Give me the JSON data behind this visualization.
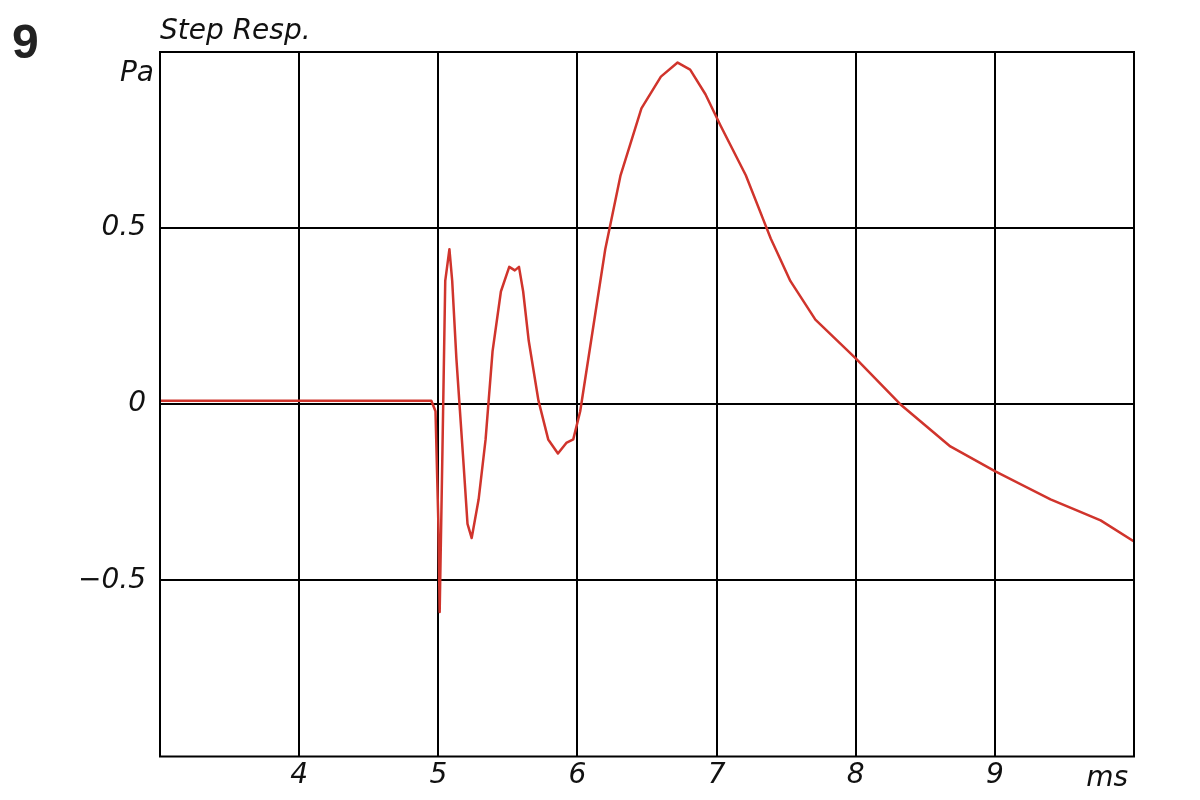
{
  "chart_data": {
    "type": "line",
    "title": "Step Resp.",
    "xlabel": "ms",
    "ylabel": "Pa",
    "annotations": [
      "9"
    ],
    "xlim": [
      3,
      10
    ],
    "xticks": [
      4,
      5,
      6,
      7,
      8,
      9
    ],
    "ylim": [
      -1,
      1
    ],
    "yticks": [
      {
        "value": -0.5,
        "label": "−0.5"
      },
      0,
      0.5
    ],
    "grid": true,
    "legend": false,
    "marker": "none",
    "line_style": "solid",
    "series": [
      {
        "color": "#d0342c",
        "x": [
          3.0,
          4.95,
          4.98,
          5.0,
          5.01,
          5.03,
          5.05,
          5.08,
          5.1,
          5.13,
          5.18,
          5.21,
          5.24,
          5.29,
          5.34,
          5.39,
          5.45,
          5.51,
          5.55,
          5.58,
          5.61,
          5.65,
          5.72,
          5.79,
          5.86,
          5.92,
          5.97,
          6.02,
          6.11,
          6.2,
          6.31,
          6.46,
          6.6,
          6.72,
          6.81,
          6.92,
          7.03,
          7.21,
          7.39,
          7.53,
          7.71,
          8.0,
          8.32,
          8.68,
          9.0,
          9.4,
          9.76,
          10.0
        ],
        "values": [
          0.01,
          0.01,
          -0.02,
          -0.33,
          -0.59,
          -0.13,
          0.35,
          0.44,
          0.35,
          0.13,
          -0.16,
          -0.34,
          -0.38,
          -0.27,
          -0.1,
          0.15,
          0.32,
          0.39,
          0.38,
          0.39,
          0.32,
          0.18,
          0.01,
          -0.1,
          -0.14,
          -0.11,
          -0.1,
          -0.02,
          0.21,
          0.44,
          0.65,
          0.84,
          0.93,
          0.97,
          0.95,
          0.88,
          0.79,
          0.65,
          0.47,
          0.35,
          0.24,
          0.13,
          0.0,
          -0.12,
          -0.19,
          -0.27,
          -0.33,
          -0.39
        ]
      }
    ]
  }
}
